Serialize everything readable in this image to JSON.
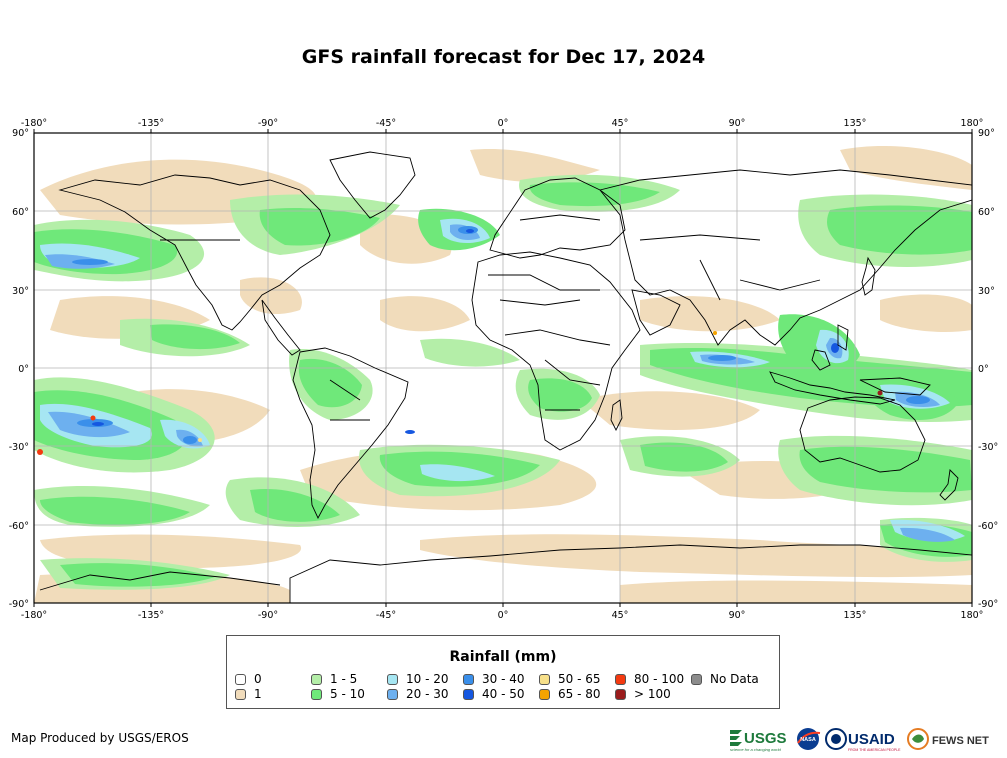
{
  "title": "GFS rainfall forecast for Dec 17, 2024",
  "axes": {
    "x_ticks": [
      "-180°",
      "-135°",
      "-90°",
      "-45°",
      "0°",
      "45°",
      "90°",
      "135°",
      "180°"
    ],
    "y_ticks_left": [
      "90°",
      "60°",
      "30°",
      "0°",
      "-30°",
      "-60°",
      "-90°"
    ],
    "y_ticks_right": [
      "90°",
      "60°",
      "30°",
      "0°",
      "-30°",
      "-60°",
      "-90°"
    ]
  },
  "legend": {
    "title": "Rainfall (mm)",
    "items": [
      {
        "label": "0",
        "color": "#ffffff"
      },
      {
        "label": "1",
        "color": "#f1dcbb"
      },
      {
        "label": "1 - 5",
        "color": "#b4eea8"
      },
      {
        "label": "5 - 10",
        "color": "#6fe87a"
      },
      {
        "label": "10 - 20",
        "color": "#a6e6f2"
      },
      {
        "label": "20 - 30",
        "color": "#6db0ef"
      },
      {
        "label": "30 - 40",
        "color": "#3a8fea"
      },
      {
        "label": "40 - 50",
        "color": "#1557e0"
      },
      {
        "label": "50 - 65",
        "color": "#f7e08a"
      },
      {
        "label": "65 - 80",
        "color": "#f4a300"
      },
      {
        "label": "80 - 100",
        "color": "#f43a10"
      },
      {
        "label": "> 100",
        "color": "#9a1c1c"
      },
      {
        "label": "No Data",
        "color": "#8c8c8c"
      }
    ]
  },
  "credit": "Map Produced by USGS/EROS",
  "logos": {
    "usgs": "USGS",
    "usgs_tagline": "science for a changing world",
    "nasa": "NASA",
    "usaid": "USAID",
    "usaid_tagline": "FROM THE AMERICAN PEOPLE",
    "fewsnet": "FEWS NET"
  }
}
